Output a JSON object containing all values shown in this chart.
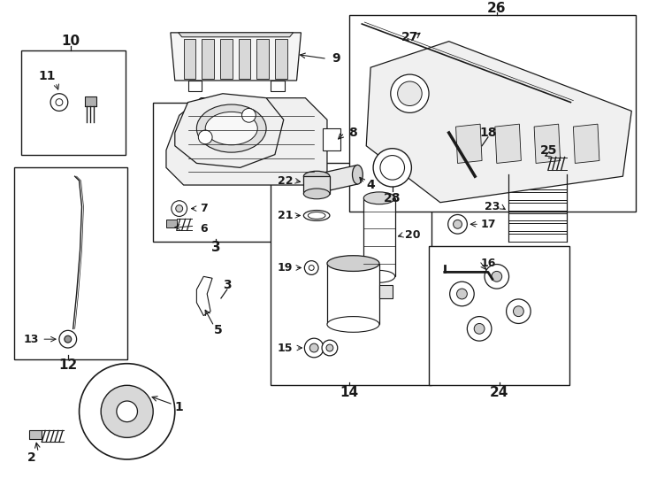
{
  "bg": "#ffffff",
  "lc": "#1a1a1a",
  "fig_w": 7.34,
  "fig_h": 5.4,
  "dpi": 100
}
